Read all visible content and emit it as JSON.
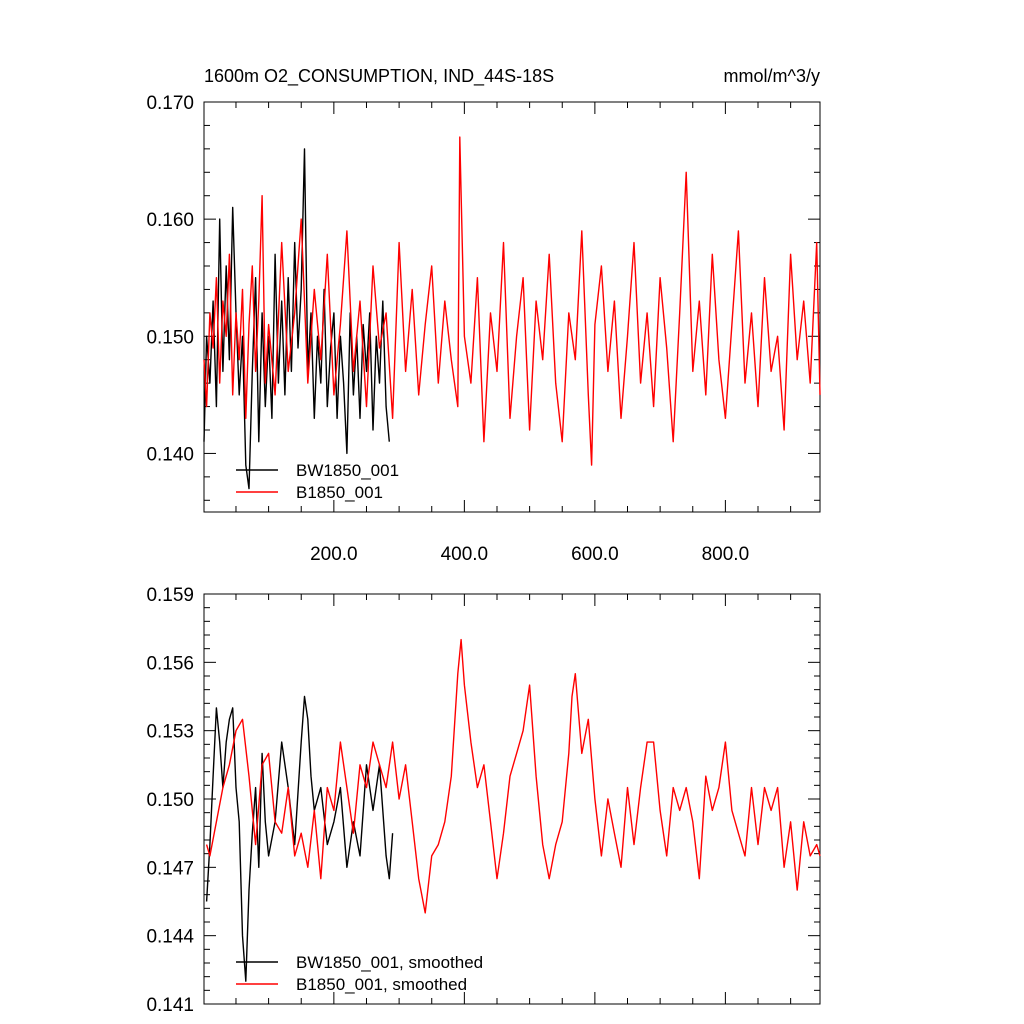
{
  "chart_data": [
    {
      "type": "line",
      "title": "1600m O2_CONSUMPTION, IND_44S-18S",
      "units": "mmol/m^3/y",
      "xlim": [
        1,
        945
      ],
      "ylim": [
        0.135,
        0.17
      ],
      "xticks": [
        200,
        400,
        600,
        800
      ],
      "xtick_labels": [
        "200.0",
        "400.0",
        "600.0",
        "800.0"
      ],
      "yticks": [
        0.14,
        0.15,
        0.16,
        0.17
      ],
      "ytick_labels": [
        "0.140",
        "0.150",
        "0.160",
        "0.170"
      ],
      "legend_position": "bottom-left",
      "grid": false,
      "series": [
        {
          "name": "BW1850_001",
          "color": "#000000",
          "x": [
            1,
            5,
            10,
            15,
            20,
            25,
            30,
            35,
            40,
            45,
            50,
            55,
            60,
            65,
            70,
            75,
            80,
            85,
            90,
            95,
            100,
            105,
            110,
            115,
            120,
            125,
            130,
            135,
            140,
            145,
            150,
            155,
            160,
            165,
            170,
            175,
            180,
            185,
            190,
            195,
            200,
            205,
            210,
            215,
            220,
            225,
            230,
            235,
            240,
            245,
            250,
            255,
            260,
            265,
            270,
            275,
            280,
            285
          ],
          "values": [
            0.141,
            0.15,
            0.146,
            0.153,
            0.144,
            0.16,
            0.147,
            0.156,
            0.148,
            0.161,
            0.152,
            0.145,
            0.15,
            0.139,
            0.137,
            0.147,
            0.155,
            0.141,
            0.152,
            0.144,
            0.15,
            0.143,
            0.157,
            0.146,
            0.153,
            0.145,
            0.155,
            0.147,
            0.158,
            0.149,
            0.154,
            0.166,
            0.147,
            0.152,
            0.143,
            0.15,
            0.146,
            0.154,
            0.144,
            0.149,
            0.152,
            0.143,
            0.15,
            0.146,
            0.14,
            0.152,
            0.145,
            0.15,
            0.143,
            0.151,
            0.147,
            0.152,
            0.142,
            0.15,
            0.146,
            0.153,
            0.144,
            0.141
          ]
        },
        {
          "name": "B1850_001",
          "color": "#ff0000",
          "x": [
            1,
            5,
            10,
            15,
            20,
            25,
            30,
            35,
            40,
            45,
            50,
            55,
            60,
            65,
            70,
            75,
            80,
            85,
            90,
            95,
            100,
            110,
            120,
            130,
            140,
            150,
            160,
            170,
            180,
            190,
            200,
            210,
            220,
            230,
            240,
            250,
            260,
            270,
            280,
            290,
            300,
            310,
            320,
            330,
            340,
            350,
            360,
            370,
            380,
            390,
            393,
            400,
            410,
            420,
            430,
            440,
            450,
            460,
            470,
            480,
            490,
            500,
            510,
            520,
            530,
            540,
            550,
            560,
            570,
            580,
            590,
            595,
            600,
            610,
            620,
            630,
            640,
            650,
            660,
            670,
            680,
            690,
            700,
            710,
            720,
            730,
            740,
            750,
            760,
            770,
            780,
            790,
            800,
            810,
            820,
            830,
            840,
            850,
            860,
            870,
            880,
            890,
            900,
            910,
            920,
            930,
            940,
            945
          ],
          "values": [
            0.148,
            0.144,
            0.152,
            0.149,
            0.155,
            0.146,
            0.153,
            0.15,
            0.157,
            0.145,
            0.152,
            0.148,
            0.154,
            0.143,
            0.151,
            0.156,
            0.147,
            0.153,
            0.162,
            0.146,
            0.151,
            0.145,
            0.158,
            0.147,
            0.152,
            0.16,
            0.146,
            0.154,
            0.148,
            0.157,
            0.145,
            0.151,
            0.159,
            0.147,
            0.153,
            0.144,
            0.156,
            0.149,
            0.152,
            0.143,
            0.158,
            0.147,
            0.154,
            0.145,
            0.151,
            0.156,
            0.146,
            0.153,
            0.148,
            0.144,
            0.167,
            0.15,
            0.146,
            0.155,
            0.141,
            0.152,
            0.147,
            0.158,
            0.143,
            0.15,
            0.155,
            0.142,
            0.153,
            0.148,
            0.157,
            0.146,
            0.141,
            0.152,
            0.148,
            0.159,
            0.145,
            0.139,
            0.151,
            0.156,
            0.147,
            0.153,
            0.143,
            0.15,
            0.158,
            0.146,
            0.152,
            0.144,
            0.155,
            0.149,
            0.141,
            0.152,
            0.164,
            0.147,
            0.153,
            0.145,
            0.157,
            0.148,
            0.143,
            0.151,
            0.159,
            0.146,
            0.152,
            0.144,
            0.155,
            0.147,
            0.15,
            0.142,
            0.157,
            0.148,
            0.153,
            0.146,
            0.158,
            0.145
          ]
        }
      ]
    },
    {
      "type": "line",
      "title": "",
      "xlim": [
        1,
        945
      ],
      "ylim": [
        0.141,
        0.159
      ],
      "xticks": [
        200,
        400,
        600,
        800
      ],
      "xtick_labels": [],
      "yticks": [
        0.141,
        0.144,
        0.147,
        0.15,
        0.153,
        0.156,
        0.159
      ],
      "ytick_labels": [
        "0.141",
        "0.144",
        "0.147",
        "0.150",
        "0.153",
        "0.156",
        "0.159"
      ],
      "legend_position": "bottom-left",
      "grid": false,
      "series": [
        {
          "name": "BW1850_001, smoothed",
          "color": "#000000",
          "x": [
            5,
            10,
            15,
            20,
            25,
            30,
            35,
            40,
            45,
            50,
            55,
            60,
            65,
            70,
            75,
            80,
            85,
            90,
            95,
            100,
            110,
            120,
            130,
            140,
            150,
            155,
            160,
            165,
            170,
            180,
            190,
            200,
            210,
            220,
            230,
            240,
            250,
            260,
            270,
            280,
            285,
            290
          ],
          "values": [
            0.1455,
            0.148,
            0.151,
            0.154,
            0.1525,
            0.1505,
            0.1525,
            0.1535,
            0.154,
            0.1505,
            0.149,
            0.144,
            0.142,
            0.146,
            0.1485,
            0.1505,
            0.147,
            0.152,
            0.149,
            0.1475,
            0.149,
            0.1525,
            0.1505,
            0.148,
            0.1525,
            0.1545,
            0.1535,
            0.151,
            0.1495,
            0.1505,
            0.148,
            0.149,
            0.1505,
            0.147,
            0.149,
            0.1475,
            0.1515,
            0.1495,
            0.1515,
            0.1475,
            0.1465,
            0.1485
          ]
        },
        {
          "name": "B1850_001, smoothed",
          "color": "#ff0000",
          "x": [
            5,
            10,
            20,
            30,
            40,
            50,
            60,
            70,
            80,
            90,
            100,
            110,
            120,
            130,
            140,
            150,
            160,
            170,
            180,
            190,
            200,
            210,
            220,
            230,
            240,
            250,
            260,
            270,
            280,
            290,
            300,
            310,
            320,
            330,
            340,
            350,
            360,
            370,
            380,
            390,
            395,
            400,
            410,
            420,
            430,
            440,
            450,
            460,
            470,
            480,
            490,
            500,
            510,
            520,
            530,
            540,
            550,
            560,
            565,
            570,
            580,
            590,
            600,
            610,
            620,
            630,
            640,
            650,
            660,
            670,
            680,
            690,
            700,
            710,
            720,
            730,
            740,
            750,
            760,
            770,
            780,
            790,
            800,
            810,
            820,
            830,
            840,
            850,
            860,
            870,
            880,
            890,
            900,
            910,
            920,
            930,
            940,
            945
          ],
          "values": [
            0.148,
            0.1475,
            0.149,
            0.1505,
            0.1515,
            0.153,
            0.1535,
            0.151,
            0.148,
            0.1515,
            0.152,
            0.149,
            0.1485,
            0.1505,
            0.1475,
            0.1485,
            0.147,
            0.1495,
            0.1465,
            0.1505,
            0.1495,
            0.1525,
            0.1505,
            0.1485,
            0.1515,
            0.1505,
            0.1525,
            0.1515,
            0.1505,
            0.1525,
            0.15,
            0.1515,
            0.149,
            0.1465,
            0.145,
            0.1475,
            0.148,
            0.149,
            0.151,
            0.1555,
            0.157,
            0.155,
            0.1525,
            0.1505,
            0.1515,
            0.149,
            0.1465,
            0.1485,
            0.151,
            0.152,
            0.153,
            0.155,
            0.151,
            0.148,
            0.1465,
            0.148,
            0.149,
            0.152,
            0.1545,
            0.1555,
            0.152,
            0.1535,
            0.15,
            0.1475,
            0.15,
            0.1485,
            0.147,
            0.1505,
            0.148,
            0.1505,
            0.1525,
            0.1525,
            0.1495,
            0.1475,
            0.1505,
            0.1495,
            0.1505,
            0.149,
            0.1465,
            0.151,
            0.1495,
            0.1505,
            0.1525,
            0.1495,
            0.1485,
            0.1475,
            0.1505,
            0.148,
            0.1505,
            0.1495,
            0.1505,
            0.147,
            0.149,
            0.146,
            0.149,
            0.1475,
            0.148,
            0.1475
          ]
        }
      ]
    }
  ]
}
